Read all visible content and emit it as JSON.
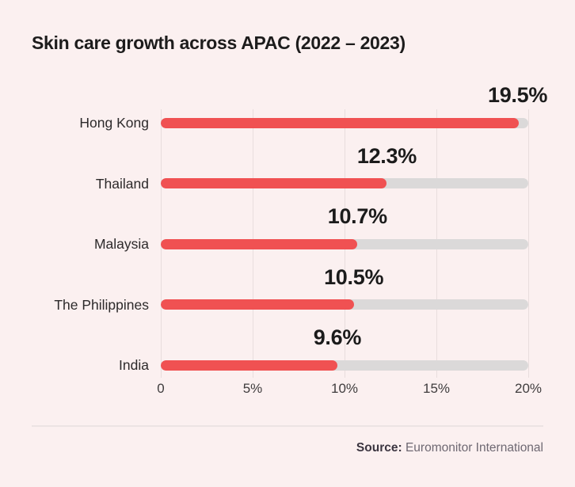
{
  "title": "Skin care growth across APAC (2022 – 2023)",
  "source": {
    "label": "Source:",
    "text": "Euromonitor International"
  },
  "colors": {
    "background": "#FBF0F0",
    "bar_fill": "#F05152",
    "bar_track": "#DBD9D9",
    "grid": "#E8DDDD"
  },
  "chart_data": {
    "type": "bar",
    "orientation": "horizontal",
    "title": "Skin care growth across APAC (2022 – 2023)",
    "categories": [
      "Hong Kong",
      "Thailand",
      "Malaysia",
      "The Philippines",
      "India"
    ],
    "values": [
      19.5,
      12.3,
      10.7,
      10.5,
      9.6
    ],
    "value_labels": [
      "19.5%",
      "12.3%",
      "10.7%",
      "10.5%",
      "9.6%"
    ],
    "xlabel": "",
    "ylabel": "",
    "xlim": [
      0,
      20
    ],
    "xticks": [
      0,
      5,
      10,
      15,
      20
    ],
    "xtick_labels": [
      "0",
      "5%",
      "10%",
      "15%",
      "20%"
    ],
    "grid": "vertical",
    "legend": "none"
  }
}
